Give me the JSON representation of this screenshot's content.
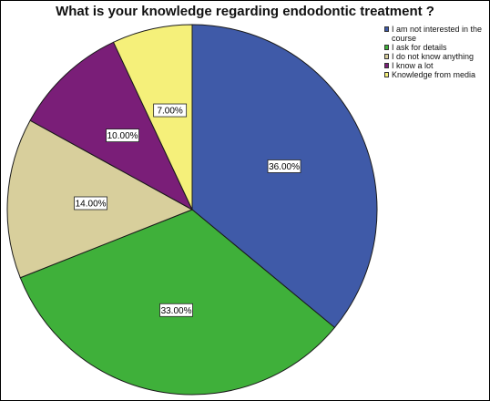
{
  "chart_data": {
    "type": "pie",
    "title": "What is your knowledge regarding endodontic treatment ?",
    "legend_position": "top-right",
    "slices": [
      {
        "label": "I am not interested in the course",
        "value": 36.0,
        "display": "36.00%",
        "color": "#3f5aa8"
      },
      {
        "label": "I ask for details",
        "value": 33.0,
        "display": "33.00%",
        "color": "#3fb03a"
      },
      {
        "label": "I do not know anything",
        "value": 14.0,
        "display": "14.00%",
        "color": "#d8cf9c"
      },
      {
        "label": "I know a lot",
        "value": 10.0,
        "display": "10.00%",
        "color": "#7a1e78"
      },
      {
        "label": "Knowledge from media",
        "value": 7.0,
        "display": "7.00%",
        "color": "#f5f07a"
      }
    ]
  }
}
